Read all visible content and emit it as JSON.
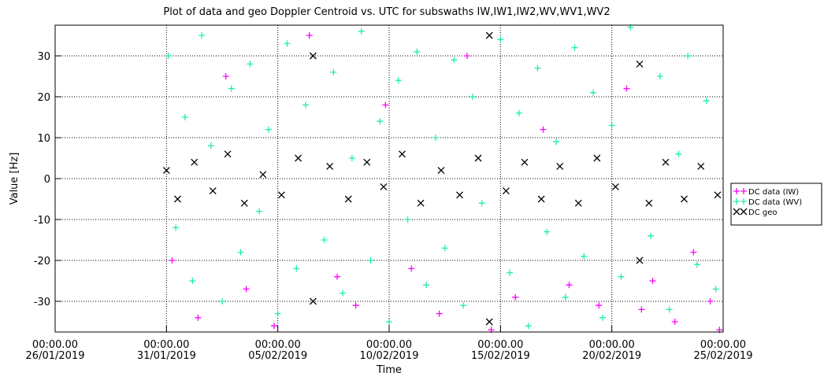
{
  "chart_data": {
    "type": "scatter",
    "title": "Plot of data and geo Doppler Centroid vs. UTC for subswaths IW,IW1,IW2,WV,WV1,WV2",
    "x_label": "Time",
    "y_label": "Value [Hz]",
    "xlim": [
      "2019-01-26 00:00",
      "2019-02-25 00:00"
    ],
    "xticks": [
      {
        "value": "2019-01-26 00:00",
        "label": [
          "00:00.00",
          "26/01/2019"
        ]
      },
      {
        "value": "2019-01-31 00:00",
        "label": [
          "00:00.00",
          "31/01/2019"
        ]
      },
      {
        "value": "2019-02-05 00:00",
        "label": [
          "00:00.00",
          "05/02/2019"
        ]
      },
      {
        "value": "2019-02-10 00:00",
        "label": [
          "00:00.00",
          "10/02/2019"
        ]
      },
      {
        "value": "2019-02-15 00:00",
        "label": [
          "00:00.00",
          "15/02/2019"
        ]
      },
      {
        "value": "2019-02-20 00:00",
        "label": [
          "00:00.00",
          "20/02/2019"
        ]
      },
      {
        "value": "2019-02-25 00:00",
        "label": [
          "00:00.00",
          "25/02/2019"
        ]
      }
    ],
    "ylim": [
      -37.5,
      37.5
    ],
    "yticks": [
      -30,
      -20,
      -10,
      0,
      10,
      20,
      30
    ],
    "grid": true,
    "legend": "right",
    "series": [
      {
        "name": "DC data (WV)",
        "color": "#1ef0a0",
        "marker": "plus",
        "x": [
          "2019-01-31 02:00",
          "2019-01-31 10:00",
          "2019-01-31 20:00",
          "2019-02-01 04:00",
          "2019-02-01 14:00",
          "2019-02-02 00:00",
          "2019-02-02 12:00",
          "2019-02-02 22:00",
          "2019-02-03 08:00",
          "2019-02-03 18:00",
          "2019-02-04 04:00",
          "2019-02-04 14:00",
          "2019-02-05 00:00",
          "2019-02-05 10:00",
          "2019-02-05 20:00",
          "2019-02-06 06:00",
          "2019-02-07 02:00",
          "2019-02-07 12:00",
          "2019-02-07 22:00",
          "2019-02-08 08:00",
          "2019-02-08 18:00",
          "2019-02-09 04:00",
          "2019-02-09 14:00",
          "2019-02-10 00:00",
          "2019-02-10 10:00",
          "2019-02-10 20:00",
          "2019-02-11 06:00",
          "2019-02-11 16:00",
          "2019-02-12 02:00",
          "2019-02-12 12:00",
          "2019-02-12 22:00",
          "2019-02-13 08:00",
          "2019-02-13 18:00",
          "2019-02-14 04:00",
          "2019-02-15 00:00",
          "2019-02-15 10:00",
          "2019-02-15 20:00",
          "2019-02-16 06:00",
          "2019-02-16 16:00",
          "2019-02-17 02:00",
          "2019-02-17 12:00",
          "2019-02-17 22:00",
          "2019-02-18 08:00",
          "2019-02-18 18:00",
          "2019-02-19 04:00",
          "2019-02-19 14:00",
          "2019-02-20 00:00",
          "2019-02-20 10:00",
          "2019-02-20 20:00",
          "2019-02-21 18:00",
          "2019-02-22 04:00",
          "2019-02-22 14:00",
          "2019-02-23 00:00",
          "2019-02-23 10:00",
          "2019-02-23 20:00",
          "2019-02-24 06:00",
          "2019-02-24 16:00"
        ],
        "values": [
          30,
          -12,
          15,
          -25,
          35,
          8,
          -30,
          22,
          -18,
          28,
          -8,
          12,
          -33,
          33,
          -22,
          18,
          -15,
          26,
          -28,
          5,
          36,
          -20,
          14,
          -35,
          24,
          -10,
          31,
          -26,
          10,
          -17,
          29,
          -31,
          20,
          -6,
          34,
          -23,
          16,
          -36,
          27,
          -13,
          9,
          -29,
          32,
          -19,
          21,
          -34,
          13,
          -24,
          37,
          -14,
          25,
          -32,
          6,
          30,
          -21,
          19,
          -27
        ]
      },
      {
        "name": "DC data (IW)",
        "color": "#ff00ff",
        "marker": "plus",
        "x": [
          "2019-01-31 06:00",
          "2019-02-01 10:00",
          "2019-02-02 16:00",
          "2019-02-03 14:00",
          "2019-02-04 20:00",
          "2019-02-06 10:00",
          "2019-02-07 16:00",
          "2019-02-08 12:00",
          "2019-02-09 20:00",
          "2019-02-11 00:00",
          "2019-02-12 06:00",
          "2019-02-13 12:00",
          "2019-02-14 14:00",
          "2019-02-15 16:00",
          "2019-02-16 22:00",
          "2019-02-18 02:00",
          "2019-02-19 10:00",
          "2019-02-20 16:00",
          "2019-02-21 08:00",
          "2019-02-21 20:00",
          "2019-02-22 20:00",
          "2019-02-23 16:00",
          "2019-02-24 10:00",
          "2019-02-24 20:00"
        ],
        "values": [
          -20,
          -34,
          25,
          -27,
          -36,
          35,
          -24,
          -31,
          18,
          -22,
          -33,
          30,
          -37,
          -29,
          12,
          -26,
          -31,
          22,
          -32,
          -25,
          -35,
          -18,
          -30,
          -37
        ]
      },
      {
        "name": "DC geo",
        "color": "#000000",
        "marker": "cross",
        "x": [
          "2019-01-31 00:00",
          "2019-01-31 12:00",
          "2019-02-01 06:00",
          "2019-02-02 02:00",
          "2019-02-02 18:00",
          "2019-02-03 12:00",
          "2019-02-04 08:00",
          "2019-02-05 04:00",
          "2019-02-05 22:00",
          "2019-02-06 14:00",
          "2019-02-06 14:00",
          "2019-02-07 08:00",
          "2019-02-08 04:00",
          "2019-02-09 00:00",
          "2019-02-09 18:00",
          "2019-02-10 14:00",
          "2019-02-11 10:00",
          "2019-02-12 08:00",
          "2019-02-13 04:00",
          "2019-02-14 00:00",
          "2019-02-14 12:00",
          "2019-02-14 12:00",
          "2019-02-15 06:00",
          "2019-02-16 02:00",
          "2019-02-16 20:00",
          "2019-02-17 16:00",
          "2019-02-18 12:00",
          "2019-02-19 08:00",
          "2019-02-20 04:00",
          "2019-02-21 06:00",
          "2019-02-21 06:00",
          "2019-02-21 16:00",
          "2019-02-22 10:00",
          "2019-02-23 06:00",
          "2019-02-24 00:00",
          "2019-02-24 18:00"
        ],
        "values": [
          2,
          -5,
          4,
          -3,
          6,
          -6,
          1,
          -4,
          5,
          30,
          -30,
          3,
          -5,
          4,
          -2,
          6,
          -6,
          2,
          -4,
          5,
          35,
          -35,
          -3,
          4,
          -5,
          3,
          -6,
          5,
          -2,
          28,
          -20,
          -6,
          4,
          -5,
          3,
          -4
        ]
      }
    ]
  }
}
